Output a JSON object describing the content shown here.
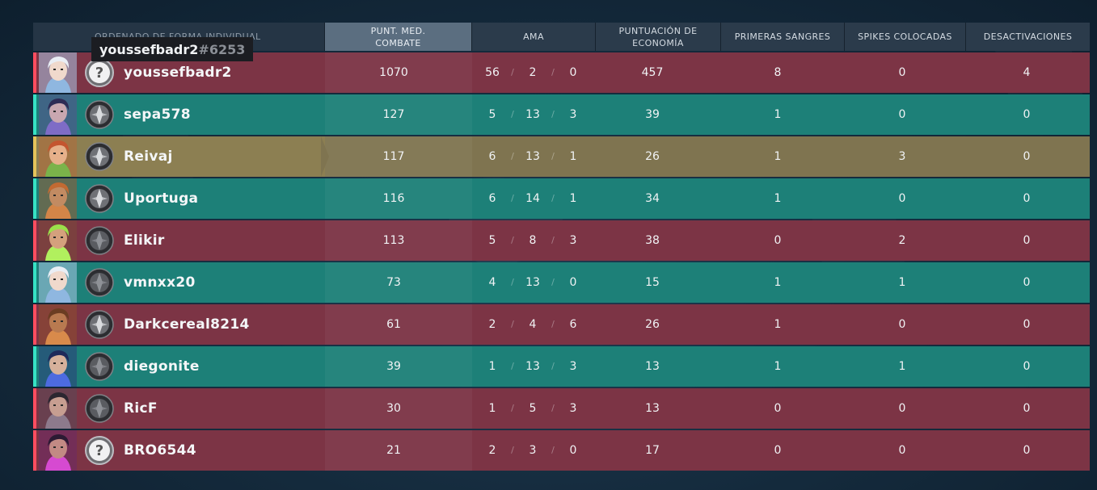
{
  "header": {
    "sort_label": "ORDENADO DE FORMA INDIVIDUAL",
    "acs_line1": "PUNT. MED.",
    "acs_line2": "COMBATE",
    "kda": "AMA",
    "eco_line1": "PUNTUACIÓN DE",
    "eco_line2": "ECONOMÍA",
    "first_bloods": "PRIMERAS SANGRES",
    "spikes": "SPIKES COLOCADAS",
    "defuses": "DESACTIVACIONES"
  },
  "tooltip": {
    "name": "youssefbadr2",
    "tag": "#6253"
  },
  "colors": {
    "red_team": "#7c3445",
    "teal_team": "#1d8078",
    "self_highlight": "#7f7450"
  },
  "players": [
    {
      "name": "youssefbadr2",
      "team": "red",
      "agent": "jett",
      "rank": "unranked",
      "acs": "1070",
      "k": "56",
      "d": "2",
      "a": "0",
      "eco": "457",
      "fb": "8",
      "spikes": "0",
      "defuses": "4"
    },
    {
      "name": "sepa578",
      "team": "teal",
      "agent": "neon-dark",
      "rank": "iron",
      "acs": "127",
      "k": "5",
      "d": "13",
      "a": "3",
      "eco": "39",
      "fb": "1",
      "spikes": "0",
      "defuses": "0"
    },
    {
      "name": "Reivaj",
      "team": "gold",
      "agent": "skye",
      "rank": "iron",
      "acs": "117",
      "k": "6",
      "d": "13",
      "a": "1",
      "eco": "26",
      "fb": "1",
      "spikes": "3",
      "defuses": "0"
    },
    {
      "name": "Uportuga",
      "team": "teal",
      "agent": "kayo-beard",
      "rank": "iron",
      "acs": "116",
      "k": "6",
      "d": "14",
      "a": "1",
      "eco": "34",
      "fb": "1",
      "spikes": "0",
      "defuses": "0"
    },
    {
      "name": "Elikir",
      "team": "red",
      "agent": "neon-green",
      "rank": "iron-dark",
      "acs": "113",
      "k": "5",
      "d": "8",
      "a": "3",
      "eco": "38",
      "fb": "0",
      "spikes": "2",
      "defuses": "0"
    },
    {
      "name": "vmnxx20",
      "team": "teal",
      "agent": "jett",
      "rank": "iron-dark",
      "acs": "73",
      "k": "4",
      "d": "13",
      "a": "0",
      "eco": "15",
      "fb": "1",
      "spikes": "1",
      "defuses": "0"
    },
    {
      "name": "Darkcereal8214",
      "team": "red",
      "agent": "breach",
      "rank": "iron",
      "acs": "61",
      "k": "2",
      "d": "4",
      "a": "6",
      "eco": "26",
      "fb": "1",
      "spikes": "0",
      "defuses": "0"
    },
    {
      "name": "diegonite",
      "team": "teal",
      "agent": "yoru",
      "rank": "iron-dark",
      "acs": "39",
      "k": "1",
      "d": "13",
      "a": "3",
      "eco": "13",
      "fb": "1",
      "spikes": "1",
      "defuses": "0"
    },
    {
      "name": "RicF",
      "team": "red",
      "agent": "fade",
      "rank": "iron-dark",
      "acs": "30",
      "k": "1",
      "d": "5",
      "a": "3",
      "eco": "13",
      "fb": "0",
      "spikes": "0",
      "defuses": "0"
    },
    {
      "name": "BRO6544",
      "team": "red",
      "agent": "reyna",
      "rank": "unranked",
      "acs": "21",
      "k": "2",
      "d": "3",
      "a": "0",
      "eco": "17",
      "fb": "0",
      "spikes": "0",
      "defuses": "0"
    }
  ]
}
